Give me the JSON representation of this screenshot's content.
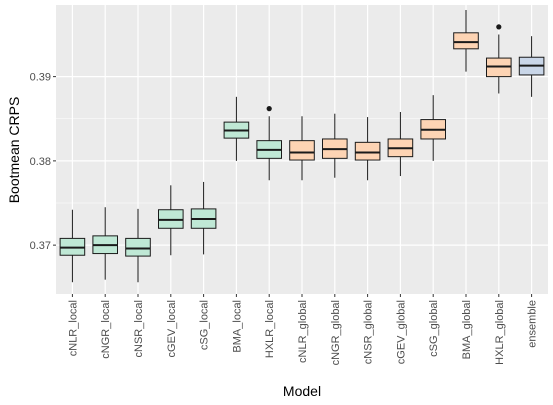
{
  "chart_data": {
    "type": "boxplot",
    "xlabel": "Model",
    "ylabel": "Bootmean CRPS",
    "ylim": [
      0.3642,
      0.3985
    ],
    "y_ticks": [
      0.37,
      0.38,
      0.39
    ],
    "y_tick_labels": [
      "0.37",
      "0.38",
      "0.39"
    ],
    "grid": true,
    "legend": "none",
    "colors": {
      "panel_bg": "#ebebeb",
      "grid": "#ffffff",
      "local": "#bfe8d5",
      "global": "#fdd4b4",
      "ensemble": "#c9d6e8",
      "stroke": "#1a1a1a"
    },
    "categories": [
      "cNLR_local",
      "cNGR_local",
      "cNSR_local",
      "cGEV_local",
      "cSG_local",
      "BMA_local",
      "HXLR_local",
      "cNLR_global",
      "cNGR_global",
      "cNSR_global",
      "cGEV_global",
      "cSG_global",
      "BMA_global",
      "HXLR_global",
      "ensemble"
    ],
    "groups": [
      "local",
      "local",
      "local",
      "local",
      "local",
      "local",
      "local",
      "global",
      "global",
      "global",
      "global",
      "global",
      "global",
      "global",
      "ensemble"
    ],
    "boxes": [
      {
        "whisker_low": 0.3656,
        "q1": 0.3688,
        "median": 0.3697,
        "q3": 0.3708,
        "whisker_high": 0.3742,
        "outliers": []
      },
      {
        "whisker_low": 0.3659,
        "q1": 0.369,
        "median": 0.37,
        "q3": 0.3711,
        "whisker_high": 0.3745,
        "outliers": []
      },
      {
        "whisker_low": 0.3656,
        "q1": 0.3687,
        "median": 0.3696,
        "q3": 0.3708,
        "whisker_high": 0.3743,
        "outliers": []
      },
      {
        "whisker_low": 0.3688,
        "q1": 0.372,
        "median": 0.373,
        "q3": 0.3742,
        "whisker_high": 0.3771,
        "outliers": []
      },
      {
        "whisker_low": 0.3689,
        "q1": 0.372,
        "median": 0.3731,
        "q3": 0.3743,
        "whisker_high": 0.3775,
        "outliers": []
      },
      {
        "whisker_low": 0.38,
        "q1": 0.3827,
        "median": 0.3836,
        "q3": 0.3846,
        "whisker_high": 0.3876,
        "outliers": []
      },
      {
        "whisker_low": 0.3777,
        "q1": 0.3803,
        "median": 0.3813,
        "q3": 0.3824,
        "whisker_high": 0.3853,
        "outliers": [
          0.3862
        ]
      },
      {
        "whisker_low": 0.3777,
        "q1": 0.3801,
        "median": 0.381,
        "q3": 0.3824,
        "whisker_high": 0.3853,
        "outliers": []
      },
      {
        "whisker_low": 0.378,
        "q1": 0.3803,
        "median": 0.3814,
        "q3": 0.3826,
        "whisker_high": 0.3856,
        "outliers": []
      },
      {
        "whisker_low": 0.3777,
        "q1": 0.3801,
        "median": 0.381,
        "q3": 0.3822,
        "whisker_high": 0.3852,
        "outliers": []
      },
      {
        "whisker_low": 0.3782,
        "q1": 0.3805,
        "median": 0.3815,
        "q3": 0.3826,
        "whisker_high": 0.3858,
        "outliers": []
      },
      {
        "whisker_low": 0.38,
        "q1": 0.3826,
        "median": 0.3837,
        "q3": 0.3849,
        "whisker_high": 0.3878,
        "outliers": []
      },
      {
        "whisker_low": 0.3906,
        "q1": 0.3933,
        "median": 0.3941,
        "q3": 0.3952,
        "whisker_high": 0.3979,
        "outliers": []
      },
      {
        "whisker_low": 0.388,
        "q1": 0.39,
        "median": 0.3912,
        "q3": 0.3922,
        "whisker_high": 0.395,
        "outliers": [
          0.3959
        ]
      },
      {
        "whisker_low": 0.3876,
        "q1": 0.3902,
        "median": 0.3913,
        "q3": 0.3923,
        "whisker_high": 0.3948,
        "outliers": []
      }
    ]
  }
}
